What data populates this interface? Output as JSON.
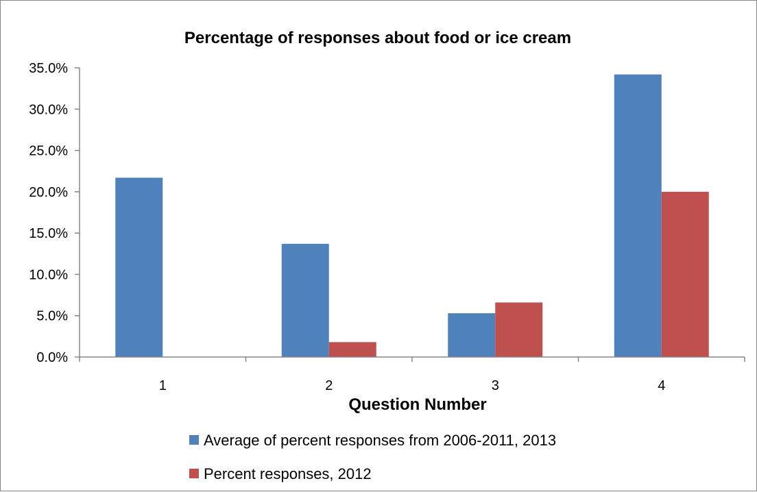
{
  "chart_data": {
    "type": "bar",
    "title": "Percentage of responses about food or ice cream",
    "xlabel": "Question Number",
    "ylabel": "",
    "categories": [
      "1",
      "2",
      "3",
      "4"
    ],
    "ylim": [
      0,
      35
    ],
    "yticks": [
      0,
      5,
      10,
      15,
      20,
      25,
      30,
      35
    ],
    "ytick_labels": [
      "0.0%",
      "5.0%",
      "10.0%",
      "15.0%",
      "20.0%",
      "25.0%",
      "30.0%",
      "35.0%"
    ],
    "series": [
      {
        "name": "Average of percent responses from 2006-2011, 2013",
        "color": "#4F81BD",
        "values": [
          21.7,
          13.7,
          5.3,
          34.2
        ]
      },
      {
        "name": "Percent responses, 2012",
        "color": "#C0504D",
        "values": [
          0,
          1.8,
          6.6,
          20.0
        ]
      }
    ],
    "grid": false,
    "legend_position": "bottom"
  }
}
